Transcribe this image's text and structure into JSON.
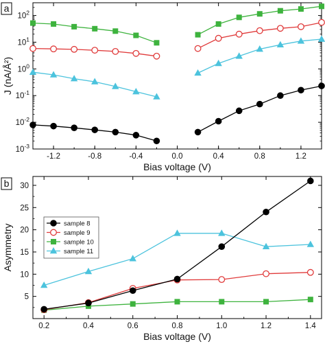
{
  "chart_data": [
    {
      "panel_label": "a",
      "type": "line",
      "xlabel": "Bias voltage (V)",
      "ylabel": "J (nA/Å²)",
      "xlim": [
        -1.4,
        1.4
      ],
      "ylim": [
        0.001,
        300
      ],
      "yscale": "log",
      "xticks": [
        -1.2,
        -0.8,
        -0.4,
        0.0,
        0.4,
        0.8,
        1.2
      ],
      "xtick_labels": [
        "-1.2",
        "-0.8",
        "-0.4",
        "0.0",
        "0.4",
        "0.8",
        "1.2"
      ],
      "yticks": [
        0.001,
        0.01,
        0.1,
        1,
        10,
        100
      ],
      "ytick_labels": [
        {
          "base": "10",
          "exp": "-3"
        },
        {
          "base": "10",
          "exp": "-2"
        },
        {
          "base": "10",
          "exp": "-1"
        },
        {
          "base": "10",
          "exp": "0"
        },
        {
          "base": "10",
          "exp": "1"
        },
        {
          "base": "10",
          "exp": "2"
        }
      ],
      "grid": false,
      "series": [
        {
          "color": "#000000",
          "marker": "circle-filled",
          "neg": {
            "x": [
              -1.4,
              -1.2,
              -1.0,
              -0.8,
              -0.6,
              -0.4,
              -0.2
            ],
            "y": [
              0.008,
              0.0072,
              0.0062,
              0.0052,
              0.0043,
              0.0033,
              0.002
            ]
          },
          "pos": {
            "x": [
              0.2,
              0.4,
              0.6,
              0.8,
              1.0,
              1.2,
              1.4
            ],
            "y": [
              0.0043,
              0.011,
              0.027,
              0.048,
              0.1,
              0.16,
              0.23
            ]
          }
        },
        {
          "color": "#e03a3a",
          "marker": "circle-open",
          "neg": {
            "x": [
              -1.4,
              -1.2,
              -1.0,
              -0.8,
              -0.6,
              -0.4,
              -0.2
            ],
            "y": [
              5.8,
              5.6,
              5.4,
              5.0,
              4.5,
              3.8,
              3.0
            ]
          },
          "pos": {
            "x": [
              0.2,
              0.4,
              0.6,
              0.8,
              1.0,
              1.2,
              1.4
            ],
            "y": [
              5.8,
              14,
              20,
              27,
              33,
              38,
              55
            ]
          }
        },
        {
          "color": "#3eb33e",
          "marker": "square-filled",
          "neg": {
            "x": [
              -1.4,
              -1.2,
              -1.0,
              -0.8,
              -0.6,
              -0.4,
              -0.2
            ],
            "y": [
              52,
              48,
              38,
              32,
              26,
              18,
              9.5
            ]
          },
          "pos": {
            "x": [
              0.2,
              0.4,
              0.6,
              0.8,
              1.0,
              1.2,
              1.4
            ],
            "y": [
              19,
              48,
              85,
              115,
              150,
              175,
              220
            ]
          }
        },
        {
          "color": "#4cc3dd",
          "marker": "triangle-filled",
          "neg": {
            "x": [
              -1.4,
              -1.2,
              -1.0,
              -0.8,
              -0.6,
              -0.4,
              -0.2
            ],
            "y": [
              0.75,
              0.6,
              0.43,
              0.33,
              0.22,
              0.14,
              0.09
            ]
          },
          "pos": {
            "x": [
              0.2,
              0.4,
              0.6,
              0.8,
              1.0,
              1.2,
              1.4
            ],
            "y": [
              0.7,
              1.6,
              3.0,
              5.5,
              8.0,
              11.0,
              13.0
            ]
          }
        }
      ]
    },
    {
      "panel_label": "b",
      "type": "line",
      "xlabel": "Bias voltage (V)",
      "ylabel": "Asymmetry",
      "xlim": [
        0.15,
        1.45
      ],
      "ylim": [
        0,
        32
      ],
      "xticks": [
        0.2,
        0.4,
        0.6,
        0.8,
        1.0,
        1.2,
        1.4
      ],
      "xtick_labels": [
        "0.2",
        "0.4",
        "0.6",
        "0.8",
        "1.0",
        "1.2",
        "1.4"
      ],
      "yticks": [
        5,
        10,
        15,
        20,
        25,
        30
      ],
      "ytick_labels": [
        "5",
        "10",
        "15",
        "20",
        "25",
        "30"
      ],
      "grid": false,
      "legend": "center-left",
      "x": [
        0.2,
        0.4,
        0.6,
        0.8,
        1.0,
        1.2,
        1.4
      ],
      "series": [
        {
          "name": "sample 8",
          "color": "#000000",
          "marker": "circle-filled",
          "values": [
            2.1,
            3.5,
            6.3,
            8.9,
            16.2,
            24.0,
            31.0
          ]
        },
        {
          "name": "sample 9",
          "color": "#e03a3a",
          "marker": "circle-open",
          "values": [
            2.0,
            3.6,
            6.8,
            8.7,
            8.8,
            10.1,
            10.4
          ]
        },
        {
          "name": "sample 10",
          "color": "#3eb33e",
          "marker": "square-filled",
          "values": [
            1.9,
            2.8,
            3.3,
            3.8,
            3.8,
            3.8,
            4.3
          ]
        },
        {
          "name": "sample 11",
          "color": "#4cc3dd",
          "marker": "triangle-filled",
          "values": [
            7.5,
            10.6,
            13.5,
            19.2,
            19.2,
            16.2,
            16.7
          ]
        }
      ]
    }
  ]
}
